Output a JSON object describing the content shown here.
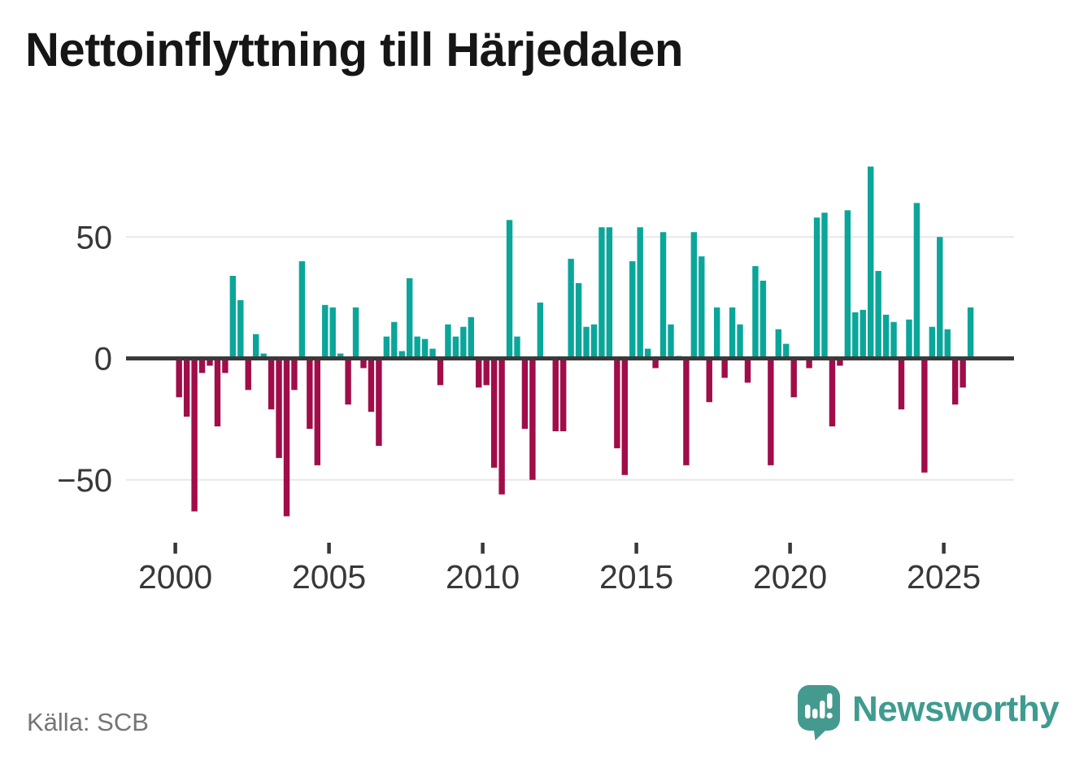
{
  "chart_data": {
    "type": "bar",
    "title": "Nettoinflyttning till Härjedalen",
    "x_unit": "quarter",
    "x_tick_labels": [
      "2000",
      "2005",
      "2010",
      "2015",
      "2020",
      "2025"
    ],
    "y_ticks": [
      50,
      0,
      -50
    ],
    "y_tick_labels": [
      "50",
      "0",
      "−50"
    ],
    "ylim": [
      -70,
      85
    ],
    "grid": "horizontal",
    "legend": "none",
    "positive_color": "#0aa69a",
    "negative_color": "#a00d49",
    "series": [
      {
        "name": "Nettoinflyttning",
        "quarterly_values_by_year": [
          {
            "year": 2000,
            "quarters": [
              -16,
              -24,
              -63,
              -6
            ]
          },
          {
            "year": 2001,
            "quarters": [
              -3,
              -28,
              -6,
              34
            ]
          },
          {
            "year": 2002,
            "quarters": [
              24,
              -13,
              10,
              2
            ]
          },
          {
            "year": 2003,
            "quarters": [
              -21,
              -41,
              -65,
              -13
            ]
          },
          {
            "year": 2004,
            "quarters": [
              40,
              -29,
              -44,
              22
            ]
          },
          {
            "year": 2005,
            "quarters": [
              21,
              2,
              -19,
              21
            ]
          },
          {
            "year": 2006,
            "quarters": [
              -4,
              -22,
              -36,
              9
            ]
          },
          {
            "year": 2007,
            "quarters": [
              15,
              3,
              33,
              9
            ]
          },
          {
            "year": 2008,
            "quarters": [
              8,
              4,
              -11,
              14
            ]
          },
          {
            "year": 2009,
            "quarters": [
              9,
              13,
              17,
              -12
            ]
          },
          {
            "year": 2010,
            "quarters": [
              -11,
              -45,
              -56,
              57
            ]
          },
          {
            "year": 2011,
            "quarters": [
              9,
              -29,
              -50,
              23
            ]
          },
          {
            "year": 2012,
            "quarters": [
              0,
              -30,
              -30,
              41
            ]
          },
          {
            "year": 2013,
            "quarters": [
              31,
              13,
              14,
              54
            ]
          },
          {
            "year": 2014,
            "quarters": [
              54,
              -37,
              -48,
              40
            ]
          },
          {
            "year": 2015,
            "quarters": [
              54,
              4,
              -4,
              52
            ]
          },
          {
            "year": 2016,
            "quarters": [
              14,
              1,
              -44,
              52
            ]
          },
          {
            "year": 2017,
            "quarters": [
              42,
              -18,
              21,
              -8
            ]
          },
          {
            "year": 2018,
            "quarters": [
              21,
              14,
              -10,
              38
            ]
          },
          {
            "year": 2019,
            "quarters": [
              32,
              -44,
              12,
              6
            ]
          },
          {
            "year": 2020,
            "quarters": [
              -16,
              0,
              -4,
              58
            ]
          },
          {
            "year": 2021,
            "quarters": [
              60,
              -28,
              -3,
              61
            ]
          },
          {
            "year": 2022,
            "quarters": [
              19,
              20,
              79,
              36
            ]
          },
          {
            "year": 2023,
            "quarters": [
              18,
              15,
              -21,
              16
            ]
          },
          {
            "year": 2024,
            "quarters": [
              64,
              -47,
              13,
              50
            ]
          },
          {
            "year": 2025,
            "quarters": [
              12,
              -19,
              -12,
              21
            ]
          }
        ]
      }
    ]
  },
  "source": "Källa: SCB",
  "logo": {
    "text": "Newsworthy",
    "icon": "speech-bubble-bar-chart-exclamation-icon",
    "color": "#3f9b90"
  },
  "colors": {
    "positive": "#0aa69a",
    "negative": "#a00d49",
    "axis_line": "#3a3a3a",
    "gridline": "#e8e8e8",
    "tick_label": "#383838",
    "title": "#161616",
    "source": "#757575",
    "background": "#ffffff"
  }
}
